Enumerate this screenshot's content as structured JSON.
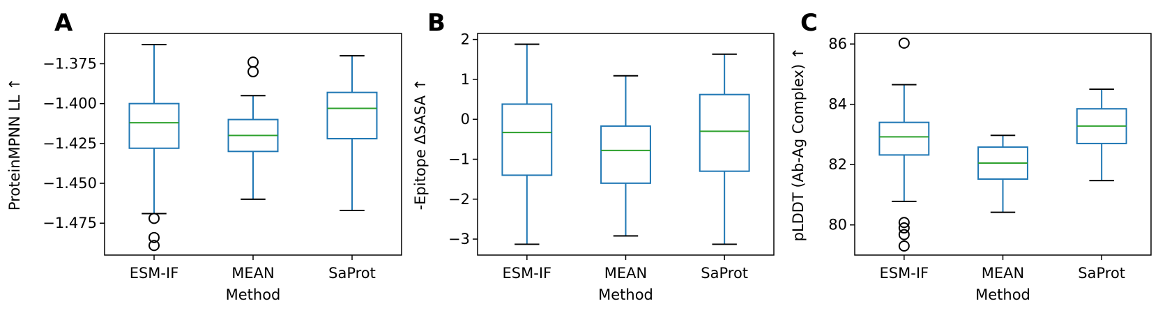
{
  "figure": {
    "colors": {
      "box": "#1f77b4",
      "median": "#2ca02c",
      "outlier": "#000000",
      "frame": "#000000"
    }
  },
  "chart_data": [
    {
      "type": "box",
      "panel_letter": "A",
      "xlabel": "Method",
      "ylabel": "ProteinMPNN LL  ↑",
      "categories": [
        "ESM-IF",
        "MEAN",
        "SaProt"
      ],
      "ylim": [
        -1.495,
        -1.356
      ],
      "yticks": [
        -1.375,
        -1.4,
        -1.425,
        -1.45,
        -1.475
      ],
      "ytick_labels": [
        "−1.375",
        "−1.400",
        "−1.425",
        "−1.450",
        "−1.475"
      ],
      "boxes": [
        {
          "category": "ESM-IF",
          "whisker_low": -1.469,
          "q1": -1.428,
          "median": -1.412,
          "q3": -1.4,
          "whisker_high": -1.363,
          "outliers": [
            -1.472,
            -1.484,
            -1.489
          ]
        },
        {
          "category": "MEAN",
          "whisker_low": -1.46,
          "q1": -1.43,
          "median": -1.42,
          "q3": -1.41,
          "whisker_high": -1.395,
          "outliers": [
            -1.374,
            -1.38
          ]
        },
        {
          "category": "SaProt",
          "whisker_low": -1.467,
          "q1": -1.422,
          "median": -1.403,
          "q3": -1.393,
          "whisker_high": -1.37,
          "outliers": []
        }
      ]
    },
    {
      "type": "box",
      "panel_letter": "B",
      "xlabel": "Method",
      "ylabel": "-Epitope ΔSASA  ↑",
      "categories": [
        "ESM-IF",
        "MEAN",
        "SaProt"
      ],
      "ylim": [
        -3.4,
        2.15
      ],
      "yticks": [
        2,
        1,
        0,
        -1,
        -2,
        -3
      ],
      "ytick_labels": [
        "2",
        "1",
        "0",
        "−1",
        "−2",
        "−3"
      ],
      "boxes": [
        {
          "category": "ESM-IF",
          "whisker_low": -3.13,
          "q1": -1.4,
          "median": -0.33,
          "q3": 0.38,
          "whisker_high": 1.88,
          "outliers": []
        },
        {
          "category": "MEAN",
          "whisker_low": -2.92,
          "q1": -1.6,
          "median": -0.78,
          "q3": -0.17,
          "whisker_high": 1.09,
          "outliers": []
        },
        {
          "category": "SaProt",
          "whisker_low": -3.13,
          "q1": -1.3,
          "median": -0.3,
          "q3": 0.62,
          "whisker_high": 1.63,
          "outliers": []
        }
      ]
    },
    {
      "type": "box",
      "panel_letter": "C",
      "xlabel": "Method",
      "ylabel": "pLDDT (Ab-Ag Complex)  ↑",
      "categories": [
        "ESM-IF",
        "MEAN",
        "SaProt"
      ],
      "ylim": [
        79.0,
        86.35
      ],
      "yticks": [
        86,
        84,
        82,
        80
      ],
      "ytick_labels": [
        "86",
        "84",
        "82",
        "80"
      ],
      "boxes": [
        {
          "category": "ESM-IF",
          "whisker_low": 80.78,
          "q1": 82.32,
          "median": 82.92,
          "q3": 83.4,
          "whisker_high": 84.65,
          "outliers": [
            86.03,
            80.08,
            79.9,
            79.68,
            79.3
          ]
        },
        {
          "category": "MEAN",
          "whisker_low": 80.42,
          "q1": 81.52,
          "median": 82.05,
          "q3": 82.58,
          "whisker_high": 82.97,
          "outliers": []
        },
        {
          "category": "SaProt",
          "whisker_low": 81.47,
          "q1": 82.7,
          "median": 83.28,
          "q3": 83.85,
          "whisker_high": 84.5,
          "outliers": []
        }
      ]
    }
  ]
}
